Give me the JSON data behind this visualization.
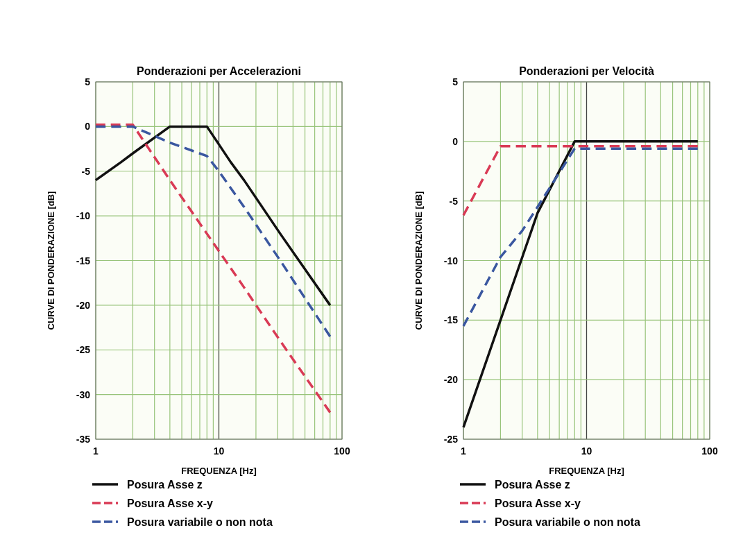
{
  "chart_data": [
    {
      "type": "line",
      "title": "Ponderazioni per Accelerazioni",
      "xlabel": "FREQUENZA [Hz]",
      "ylabel": "CURVE DI PONDERAZIONE [dB]",
      "log": "x",
      "grid": true,
      "legend": "bottom",
      "marker": "none",
      "xlim": [
        1,
        100
      ],
      "xticks": [
        1,
        {
          "value": 2,
          "label": null
        },
        {
          "value": 3,
          "label": null
        },
        {
          "value": 4,
          "label": null
        },
        {
          "value": 5,
          "label": null
        },
        {
          "value": 6,
          "label": null
        },
        {
          "value": 7,
          "label": null
        },
        {
          "value": 8,
          "label": null
        },
        {
          "value": 9,
          "label": null
        },
        10,
        {
          "value": 20,
          "label": null
        },
        {
          "value": 30,
          "label": null
        },
        {
          "value": 40,
          "label": null
        },
        {
          "value": 50,
          "label": null
        },
        {
          "value": 60,
          "label": null
        },
        {
          "value": 70,
          "label": null
        },
        {
          "value": 80,
          "label": null
        },
        {
          "value": 90,
          "label": null
        },
        100
      ],
      "ylim": [
        -35,
        5
      ],
      "yticks": [
        -35,
        -30,
        -25,
        -20,
        -15,
        -10,
        -5,
        0,
        5
      ],
      "ref_lines": [
        {
          "axis": "x",
          "value": 10,
          "color": "#444444"
        }
      ],
      "series": [
        {
          "name": "Posura Asse z",
          "color": "#111111",
          "line_style": "solid",
          "x": [
            1,
            1.6,
            2,
            4,
            8,
            10,
            12.5,
            16,
            31.5,
            80
          ],
          "values": [
            -6,
            -4,
            -3,
            0,
            0,
            -2,
            -4,
            -6,
            -12,
            -20
          ]
        },
        {
          "name": "Posura Asse x-y",
          "color": "#d93a55",
          "line_style": "dashed",
          "x": [
            1,
            2,
            4,
            8,
            16,
            31.5,
            80
          ],
          "values": [
            0.2,
            0.2,
            -6,
            -12,
            -18,
            -24,
            -32
          ]
        },
        {
          "name": "Posura variabile o non nota",
          "color": "#3a57a0",
          "line_style": "dashed",
          "x": [
            1,
            2,
            4,
            8,
            10,
            16,
            31.5,
            80
          ],
          "values": [
            0,
            0,
            -1.8,
            -3.3,
            -5,
            -9,
            -15,
            -23.5
          ]
        }
      ]
    },
    {
      "type": "line",
      "title": "Ponderazioni per Velocità",
      "xlabel": "FREQUENZA [Hz]",
      "ylabel": "CURVE DI PONDERAZIONE [dB]",
      "log": "x",
      "grid": true,
      "legend": "bottom",
      "marker": "none",
      "xlim": [
        1,
        100
      ],
      "xticks": [
        1,
        {
          "value": 2,
          "label": null
        },
        {
          "value": 3,
          "label": null
        },
        {
          "value": 4,
          "label": null
        },
        {
          "value": 5,
          "label": null
        },
        {
          "value": 6,
          "label": null
        },
        {
          "value": 7,
          "label": null
        },
        {
          "value": 8,
          "label": null
        },
        {
          "value": 9,
          "label": null
        },
        10,
        {
          "value": 20,
          "label": null
        },
        {
          "value": 30,
          "label": null
        },
        {
          "value": 40,
          "label": null
        },
        {
          "value": 50,
          "label": null
        },
        {
          "value": 60,
          "label": null
        },
        {
          "value": 70,
          "label": null
        },
        {
          "value": 80,
          "label": null
        },
        {
          "value": 90,
          "label": null
        },
        100
      ],
      "ylim": [
        -25,
        5
      ],
      "yticks": [
        -25,
        -20,
        -15,
        -10,
        -5,
        0,
        5
      ],
      "ref_lines": [
        {
          "axis": "x",
          "value": 10,
          "color": "#444444"
        }
      ],
      "series": [
        {
          "name": "Posura Asse z",
          "color": "#111111",
          "line_style": "solid",
          "x": [
            1,
            2,
            4,
            8,
            80
          ],
          "values": [
            -24,
            -15,
            -6,
            0,
            0
          ]
        },
        {
          "name": "Posura Asse x-y",
          "color": "#d93a55",
          "line_style": "dashed",
          "x": [
            1,
            2,
            8,
            80
          ],
          "values": [
            -6.2,
            -0.4,
            -0.4,
            -0.4
          ]
        },
        {
          "name": "Posura variabile o non nota",
          "color": "#3a57a0",
          "line_style": "dashed",
          "x": [
            1,
            2,
            3,
            4,
            8,
            80
          ],
          "values": [
            -15.5,
            -9.7,
            -7.5,
            -5.5,
            -0.6,
            -0.6
          ]
        }
      ]
    }
  ]
}
